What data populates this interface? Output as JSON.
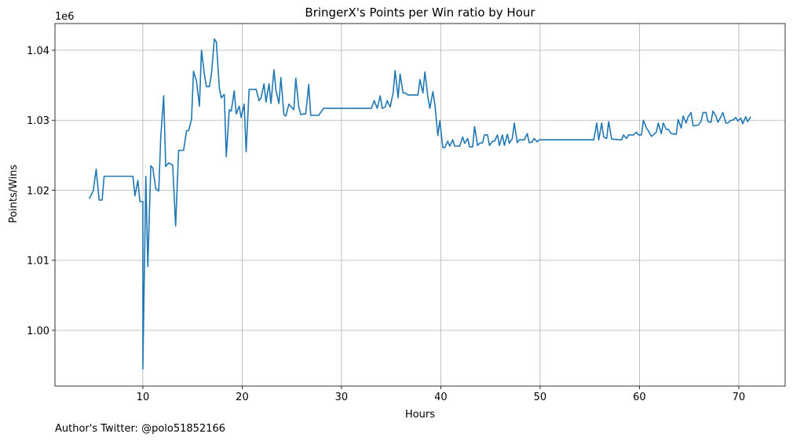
{
  "chart_data": {
    "type": "line",
    "title": "BringerX's Points per Win ratio by Hour",
    "xlabel": "Hours",
    "ylabel": "Points/Wins",
    "y_offset_label": "1e6",
    "footnote": "Author's Twitter: @polo51852166",
    "grid": true,
    "xlim": [
      1.15,
      74.67
    ],
    "ylim": [
      0.99204,
      1.04381
    ],
    "xticks": [
      10,
      20,
      30,
      40,
      50,
      60,
      70
    ],
    "yticks": [
      {
        "value": 1.0,
        "label": "1.00"
      },
      {
        "value": 1.01,
        "label": "1.01"
      },
      {
        "value": 1.02,
        "label": "1.02"
      },
      {
        "value": 1.03,
        "label": "1.03"
      },
      {
        "value": 1.04,
        "label": "1.04"
      }
    ],
    "x": [
      4.6,
      5.0,
      5.3,
      5.6,
      5.9,
      6.1,
      9.0,
      9.2,
      9.5,
      9.7,
      10.0,
      10.0,
      10.3,
      10.5,
      10.8,
      11.0,
      11.3,
      11.6,
      11.8,
      12.1,
      12.3,
      12.6,
      13.0,
      13.3,
      13.6,
      14.1,
      14.4,
      14.6,
      14.9,
      15.1,
      15.4,
      15.7,
      15.9,
      16.2,
      16.4,
      16.7,
      16.9,
      17.2,
      17.4,
      17.7,
      17.9,
      18.2,
      18.4,
      18.7,
      18.9,
      19.2,
      19.4,
      19.7,
      19.9,
      20.2,
      20.4,
      20.7,
      21.4,
      21.7,
      21.9,
      22.2,
      22.4,
      22.7,
      22.9,
      23.2,
      23.4,
      23.7,
      23.9,
      24.2,
      24.4,
      24.7,
      25.2,
      25.4,
      25.7,
      25.9,
      26.2,
      26.4,
      26.7,
      26.9,
      27.7,
      28.2,
      33.0,
      33.3,
      33.6,
      33.9,
      34.1,
      34.4,
      34.6,
      34.9,
      35.2,
      35.4,
      35.7,
      35.9,
      36.2,
      36.4,
      36.7,
      37.7,
      37.9,
      38.2,
      38.4,
      38.7,
      38.9,
      39.2,
      39.4,
      39.7,
      39.9,
      40.2,
      40.4,
      40.7,
      40.9,
      41.2,
      41.4,
      41.9,
      42.2,
      42.4,
      42.7,
      42.9,
      43.2,
      43.4,
      43.7,
      43.9,
      44.2,
      44.4,
      44.7,
      44.9,
      45.2,
      45.4,
      45.7,
      45.9,
      46.2,
      46.4,
      46.7,
      46.9,
      47.2,
      47.4,
      47.7,
      47.9,
      48.4,
      48.7,
      48.9,
      49.2,
      49.4,
      49.7,
      49.9,
      55.4,
      55.7,
      55.9,
      56.2,
      56.4,
      56.7,
      56.9,
      57.2,
      58.2,
      58.4,
      58.7,
      58.9,
      59.4,
      59.7,
      59.9,
      60.2,
      60.4,
      60.7,
      60.9,
      61.2,
      61.4,
      61.7,
      61.9,
      62.2,
      62.4,
      62.7,
      62.9,
      63.2,
      63.7,
      63.9,
      64.2,
      64.4,
      64.7,
      64.9,
      65.2,
      65.4,
      65.9,
      66.2,
      66.4,
      66.7,
      66.9,
      67.2,
      67.4,
      67.7,
      67.9,
      68.2,
      68.4,
      68.7,
      68.9,
      69.2,
      69.4,
      69.7,
      69.9,
      70.2,
      70.4,
      70.7,
      70.9,
      71.2
    ],
    "series": [
      {
        "name": "Points/Wins",
        "color": "#1f77b4",
        "values": [
          1.0188,
          1.0199,
          1.023,
          1.0186,
          1.0186,
          1.022,
          1.022,
          1.0192,
          1.0214,
          1.0184,
          1.0184,
          0.9945,
          1.022,
          1.0091,
          1.0235,
          1.0232,
          1.0202,
          1.0199,
          1.0276,
          1.0335,
          1.0234,
          1.0239,
          1.0236,
          1.0149,
          1.0257,
          1.0257,
          1.0285,
          1.0285,
          1.0301,
          1.037,
          1.0356,
          1.032,
          1.04,
          1.0365,
          1.0348,
          1.0348,
          1.0365,
          1.0416,
          1.0412,
          1.0346,
          1.0332,
          1.0337,
          1.0248,
          1.0315,
          1.0313,
          1.0342,
          1.0309,
          1.032,
          1.0304,
          1.0323,
          1.0255,
          1.0344,
          1.0344,
          1.0328,
          1.0332,
          1.0352,
          1.0326,
          1.0352,
          1.0324,
          1.0372,
          1.0343,
          1.0324,
          1.0361,
          1.0308,
          1.0306,
          1.0323,
          1.0315,
          1.036,
          1.0319,
          1.0308,
          1.0309,
          1.0309,
          1.0351,
          1.0307,
          1.0307,
          1.0317,
          1.0317,
          1.0328,
          1.0317,
          1.0335,
          1.0317,
          1.0319,
          1.0328,
          1.0319,
          1.0339,
          1.0371,
          1.0332,
          1.0366,
          1.0339,
          1.0339,
          1.0336,
          1.0336,
          1.0358,
          1.0339,
          1.0369,
          1.0333,
          1.0317,
          1.0341,
          1.0323,
          1.0278,
          1.0299,
          1.0261,
          1.0261,
          1.027,
          1.0263,
          1.0272,
          1.0263,
          1.0263,
          1.0276,
          1.0267,
          1.0274,
          1.0262,
          1.0262,
          1.0291,
          1.0264,
          1.0267,
          1.0268,
          1.0279,
          1.0279,
          1.0264,
          1.027,
          1.027,
          1.0279,
          1.0264,
          1.0279,
          1.0264,
          1.028,
          1.0267,
          1.0274,
          1.0296,
          1.0268,
          1.0272,
          1.0272,
          1.0281,
          1.0268,
          1.0269,
          1.0274,
          1.0269,
          1.0272,
          1.0272,
          1.0296,
          1.0272,
          1.0296,
          1.0276,
          1.0274,
          1.0298,
          1.0273,
          1.0272,
          1.0279,
          1.0274,
          1.0279,
          1.0279,
          1.0283,
          1.0279,
          1.0279,
          1.03,
          1.0289,
          1.0285,
          1.0277,
          1.0279,
          1.0283,
          1.0296,
          1.0281,
          1.0296,
          1.0287,
          1.0287,
          1.0281,
          1.028,
          1.0301,
          1.0289,
          1.0306,
          1.0296,
          1.0305,
          1.0311,
          1.0292,
          1.0293,
          1.0298,
          1.0311,
          1.0311,
          1.0298,
          1.0297,
          1.0313,
          1.0306,
          1.0297,
          1.0305,
          1.0311,
          1.0296,
          1.0296,
          1.03,
          1.03,
          1.0304,
          1.0299,
          1.0303,
          1.0295,
          1.0305,
          1.0298,
          1.0305
        ]
      }
    ]
  }
}
